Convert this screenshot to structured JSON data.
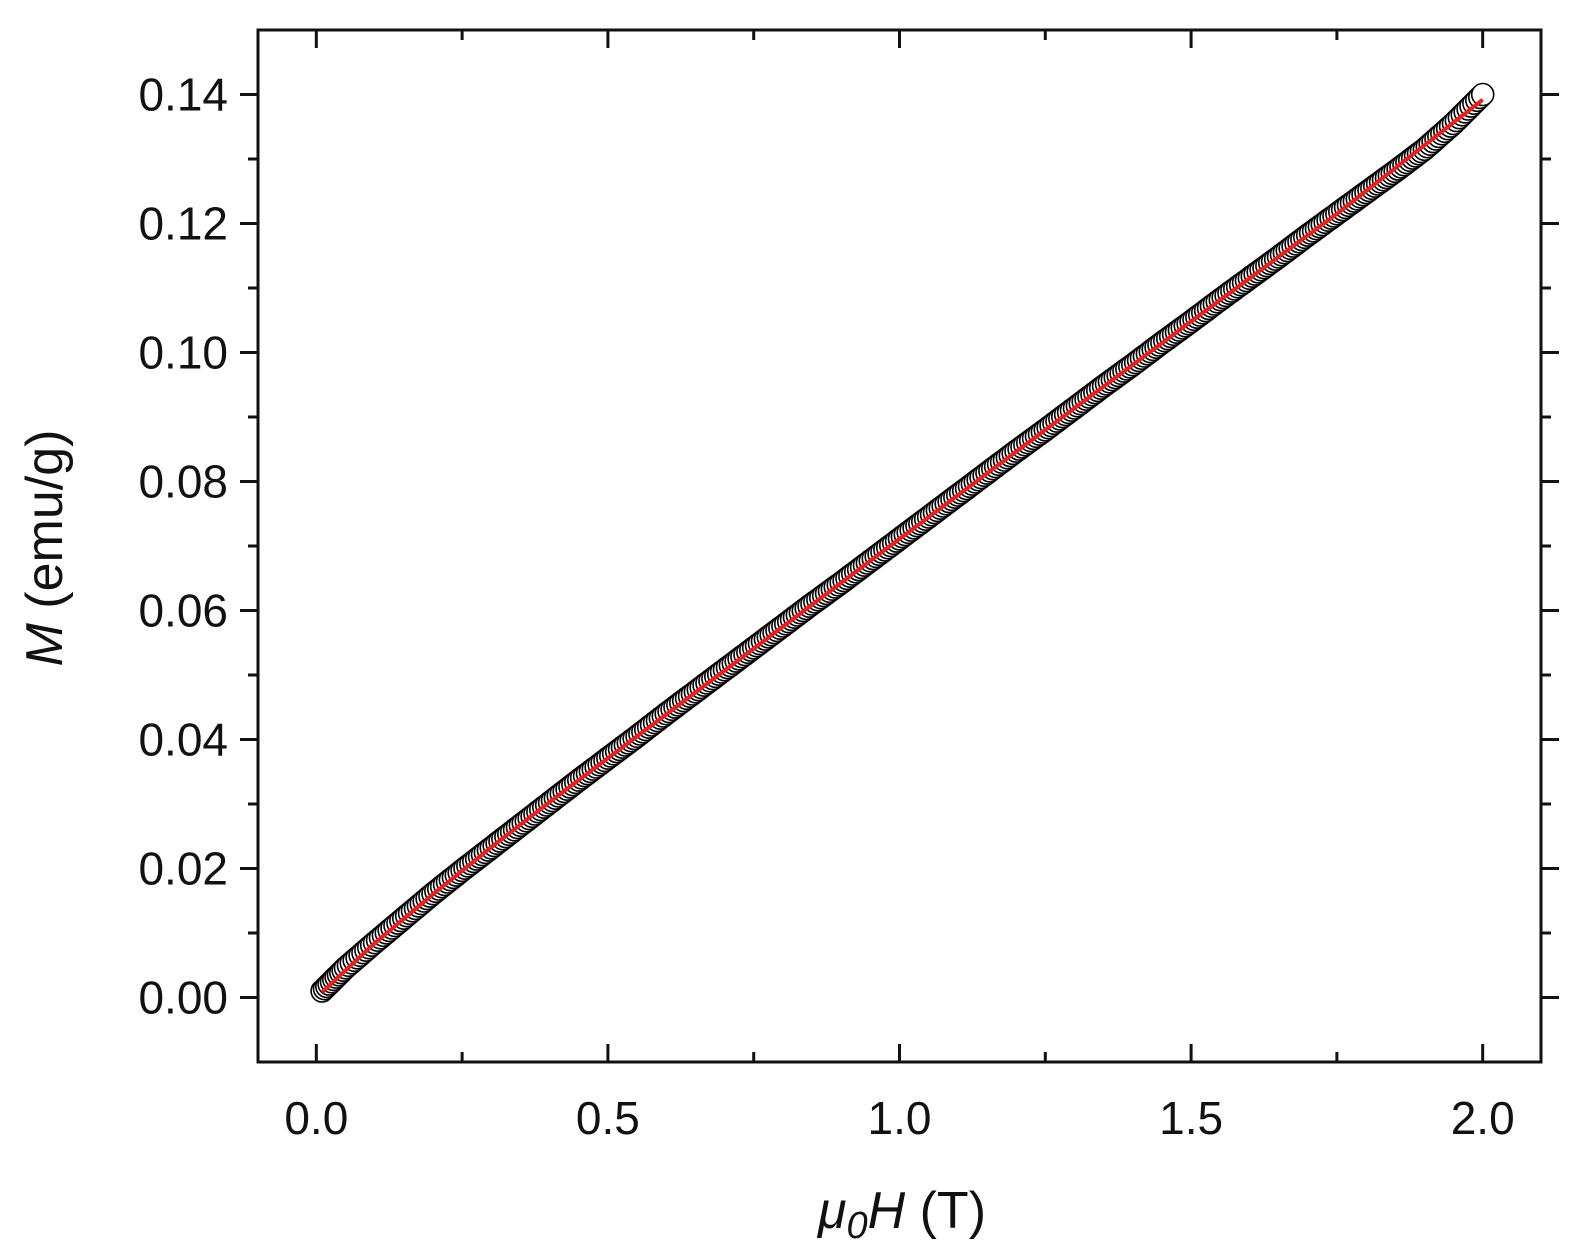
{
  "chart_data": {
    "type": "scatter",
    "title": "",
    "xlabel": {
      "symbol": "μ",
      "subscript": "0",
      "variable": "H",
      "unit": " (T)"
    },
    "ylabel": {
      "variable": "M",
      "unit": " (emu/g)"
    },
    "xlim": [
      -0.1,
      2.1
    ],
    "ylim": [
      -0.01,
      0.15
    ],
    "xticks": [
      0.0,
      0.5,
      1.0,
      1.5,
      2.0
    ],
    "xtick_labels": [
      "0.0",
      "0.5",
      "1.0",
      "1.5",
      "2.0"
    ],
    "yticks": [
      0.0,
      0.02,
      0.04,
      0.06,
      0.08,
      0.1,
      0.12,
      0.14
    ],
    "ytick_labels": [
      "0.00",
      "0.02",
      "0.04",
      "0.06",
      "0.08",
      "0.10",
      "0.12",
      "0.14"
    ],
    "grid": false,
    "legend": "none",
    "series": [
      {
        "kind": "scatter",
        "marker": "open-circle",
        "color": "#000000",
        "x": [
          0.01,
          0.05,
          0.1,
          0.15,
          0.2,
          0.25,
          0.3,
          0.35,
          0.4,
          0.45,
          0.5,
          0.55,
          0.6,
          0.65,
          0.7,
          0.75,
          0.8,
          0.85,
          0.9,
          0.95,
          1.0,
          1.05,
          1.1,
          1.15,
          1.2,
          1.25,
          1.3,
          1.35,
          1.4,
          1.45,
          1.5,
          1.55,
          1.6,
          1.65,
          1.7,
          1.75,
          1.8,
          1.85,
          1.9,
          1.95,
          2.0
        ],
        "y": [
          0.001,
          0.0046,
          0.0085,
          0.0123,
          0.0161,
          0.0197,
          0.0232,
          0.0267,
          0.0302,
          0.0337,
          0.0371,
          0.0405,
          0.044,
          0.0474,
          0.0508,
          0.0542,
          0.0576,
          0.061,
          0.0643,
          0.0677,
          0.0711,
          0.0745,
          0.0779,
          0.0813,
          0.0847,
          0.088,
          0.0914,
          0.0948,
          0.0981,
          0.1015,
          0.1048,
          0.1082,
          0.1115,
          0.1148,
          0.1182,
          0.1215,
          0.1248,
          0.1281,
          0.1315,
          0.1355,
          0.14
        ]
      },
      {
        "kind": "line",
        "color": "#e8201e",
        "x": [
          0.01,
          0.1,
          0.2,
          0.3,
          0.4,
          0.5,
          0.75,
          1.0,
          1.25,
          1.5,
          1.75,
          2.0
        ],
        "y": [
          0.0008,
          0.0084,
          0.016,
          0.0233,
          0.0303,
          0.0371,
          0.0541,
          0.0711,
          0.088,
          0.1048,
          0.1215,
          0.1392
        ]
      }
    ]
  }
}
